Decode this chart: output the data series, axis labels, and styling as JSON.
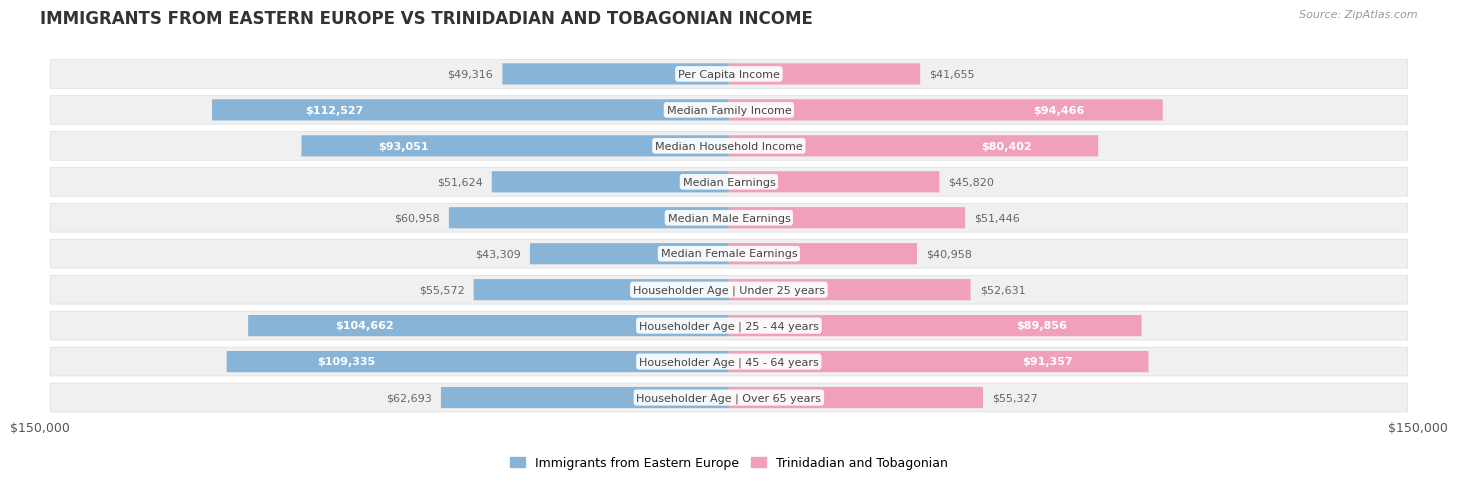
{
  "title": "IMMIGRANTS FROM EASTERN EUROPE VS TRINIDADIAN AND TOBAGONIAN INCOME",
  "source": "Source: ZipAtlas.com",
  "categories": [
    "Per Capita Income",
    "Median Family Income",
    "Median Household Income",
    "Median Earnings",
    "Median Male Earnings",
    "Median Female Earnings",
    "Householder Age | Under 25 years",
    "Householder Age | 25 - 44 years",
    "Householder Age | 45 - 64 years",
    "Householder Age | Over 65 years"
  ],
  "left_values": [
    49316,
    112527,
    93051,
    51624,
    60958,
    43309,
    55572,
    104662,
    109335,
    62693
  ],
  "right_values": [
    41655,
    94466,
    80402,
    45820,
    51446,
    40958,
    52631,
    89856,
    91357,
    55327
  ],
  "left_labels": [
    "$49,316",
    "$112,527",
    "$93,051",
    "$51,624",
    "$60,958",
    "$43,309",
    "$55,572",
    "$104,662",
    "$109,335",
    "$62,693"
  ],
  "right_labels": [
    "$41,655",
    "$94,466",
    "$80,402",
    "$45,820",
    "$51,446",
    "$40,958",
    "$52,631",
    "$89,856",
    "$91,357",
    "$55,327"
  ],
  "max_value": 150000,
  "left_color": "#88b4d8",
  "right_color": "#f0a0bc",
  "label_color_inside": "#ffffff",
  "label_color_outside": "#666666",
  "background_color": "#ffffff",
  "row_bg_color": "#f0f0f0",
  "legend_left": "Immigrants from Eastern Europe",
  "legend_right": "Trinidadian and Tobagonian",
  "inside_threshold": 65000,
  "title_fontsize": 12,
  "label_fontsize": 8,
  "category_fontsize": 8,
  "axis_label_fontsize": 9
}
